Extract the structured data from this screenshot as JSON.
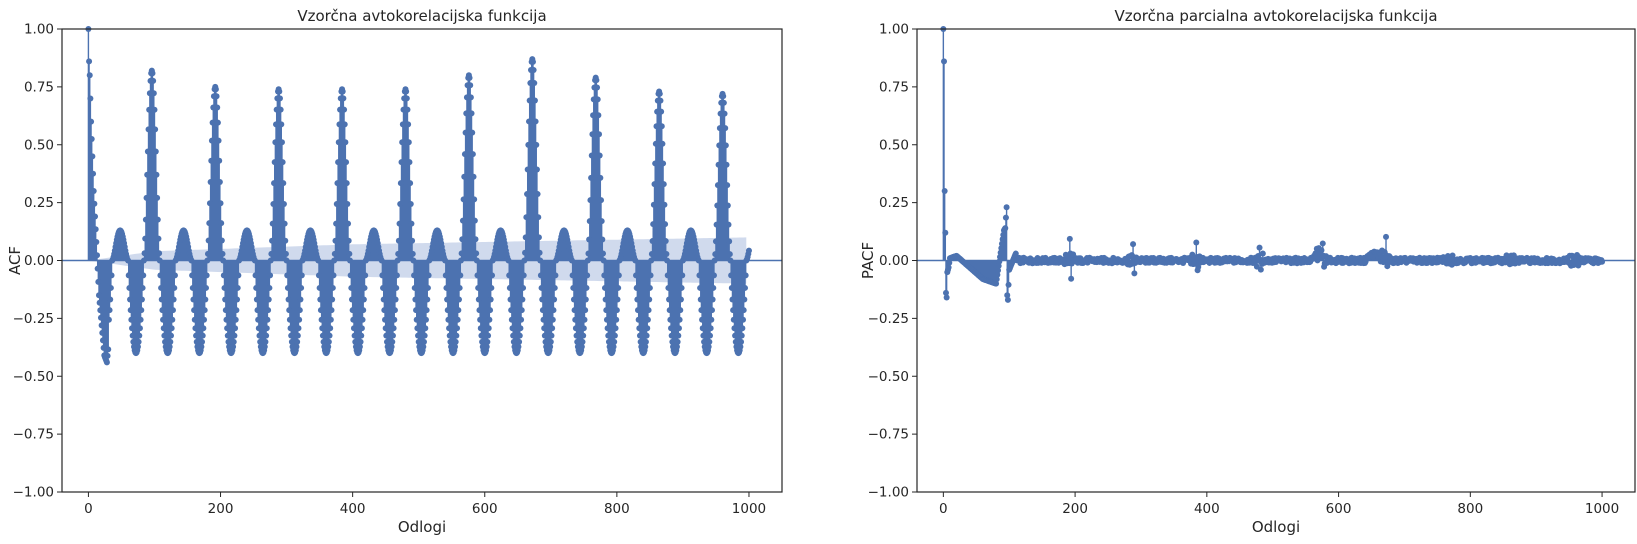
{
  "chart_data": [
    {
      "type": "stem",
      "title": "Vzorčna avtokorelacijska funkcija",
      "xlabel": "Odlogi",
      "ylabel": "ACF",
      "xlim": [
        -40,
        1050
      ],
      "ylim": [
        -1.0,
        1.0
      ],
      "xticks": [
        0,
        200,
        400,
        600,
        800,
        1000
      ],
      "yticks": [
        -1.0,
        -0.75,
        -0.5,
        -0.25,
        0.0,
        0.25,
        0.5,
        0.75,
        1.0
      ],
      "x_tick_labels": [
        "0",
        "200",
        "400",
        "600",
        "800",
        "1000"
      ],
      "y_tick_labels": [
        "−1.00",
        "−0.75",
        "−0.50",
        "−0.25",
        "0.00",
        "0.25",
        "0.50",
        "0.75",
        "1.00"
      ],
      "grid": false,
      "series_color": "#4C72B0",
      "confidence_color": "#C8D4EA",
      "lag_range": [
        0,
        1000
      ],
      "season_period": 96,
      "key_points": {
        "lag": [
          0,
          1,
          2,
          4,
          8,
          12,
          16,
          24,
          28,
          48,
          72,
          96,
          120,
          144,
          168,
          192,
          216,
          240,
          264,
          288,
          312,
          336,
          360,
          384,
          408,
          432,
          456,
          480,
          504,
          528,
          552,
          576,
          600,
          624,
          648,
          672,
          696,
          720,
          744,
          768,
          792,
          816,
          840,
          864,
          888,
          912,
          936,
          960,
          984,
          1000
        ],
        "acf": [
          1.0,
          0.86,
          0.8,
          0.6,
          0.3,
          0.08,
          -0.15,
          -0.41,
          -0.44,
          0.12,
          -0.41,
          0.82,
          -0.41,
          0.13,
          -0.39,
          0.75,
          -0.39,
          0.13,
          -0.39,
          0.74,
          -0.39,
          0.13,
          -0.39,
          0.74,
          -0.39,
          0.13,
          -0.39,
          0.74,
          -0.39,
          0.13,
          -0.39,
          0.8,
          -0.4,
          0.12,
          -0.4,
          0.87,
          -0.43,
          0.12,
          -0.39,
          0.79,
          -0.39,
          0.13,
          -0.38,
          0.73,
          -0.38,
          0.13,
          -0.38,
          0.72,
          -0.38,
          0.0
        ]
      },
      "confidence_band_halfwidth": {
        "lag": [
          0,
          100,
          200,
          400,
          600,
          800,
          1000
        ],
        "value": [
          0.0,
          0.04,
          0.05,
          0.07,
          0.08,
          0.09,
          0.1
        ]
      }
    },
    {
      "type": "stem",
      "title": "Vzorčna parcialna avtokorelacijska funkcija",
      "xlabel": "Odlogi",
      "ylabel": "PACF",
      "xlim": [
        -40,
        1050
      ],
      "ylim": [
        -1.0,
        1.0
      ],
      "xticks": [
        0,
        200,
        400,
        600,
        800,
        1000
      ],
      "yticks": [
        -1.0,
        -0.75,
        -0.5,
        -0.25,
        0.0,
        0.25,
        0.5,
        0.75,
        1.0
      ],
      "x_tick_labels": [
        "0",
        "200",
        "400",
        "600",
        "800",
        "1000"
      ],
      "y_tick_labels": [
        "−1.00",
        "−0.75",
        "−0.50",
        "−0.25",
        "0.00",
        "0.25",
        "0.50",
        "0.75",
        "1.00"
      ],
      "grid": false,
      "series_color": "#4C72B0",
      "lag_range": [
        0,
        1000
      ],
      "key_points": {
        "lag": [
          0,
          1,
          2,
          3,
          4,
          5,
          6,
          8,
          10,
          20,
          40,
          60,
          80,
          92,
          94,
          96,
          97,
          98,
          100,
          110,
          192,
          194,
          288,
          290,
          384,
          386,
          480,
          482,
          576,
          578,
          672,
          674,
          768,
          864,
          960,
          1000
        ],
        "pacf": [
          1.0,
          0.86,
          0.3,
          0.12,
          -0.14,
          -0.16,
          -0.05,
          -0.03,
          0.01,
          0.02,
          -0.03,
          -0.08,
          -0.1,
          0.13,
          0.14,
          0.23,
          -0.15,
          -0.17,
          -0.04,
          0.03,
          0.1,
          -0.08,
          0.08,
          -0.06,
          0.09,
          -0.05,
          0.07,
          -0.05,
          0.08,
          -0.04,
          0.12,
          -0.04,
          0.03,
          0.02,
          0.02,
          0.0
        ]
      }
    }
  ]
}
